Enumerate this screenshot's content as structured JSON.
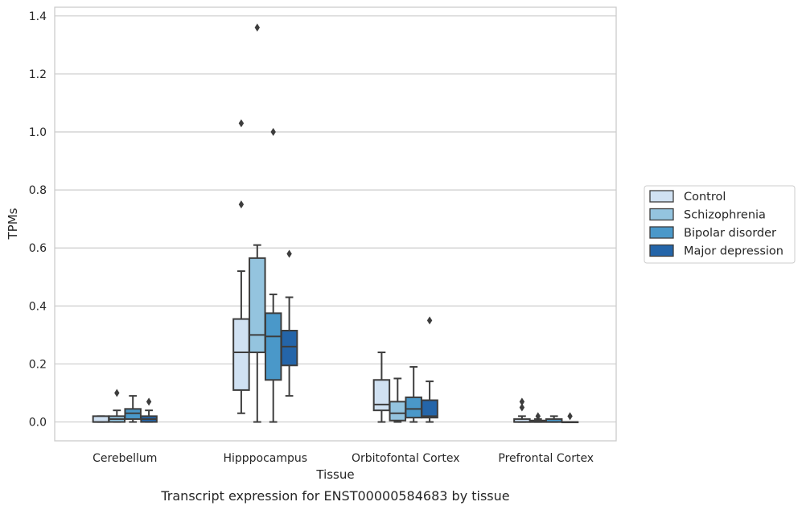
{
  "chart_data": {
    "type": "box",
    "caption": "Transcript expression for ENST00000584683 by tissue",
    "xlabel": "Tissue",
    "ylabel": "TPMs",
    "ylim": [
      -0.065,
      1.43
    ],
    "yticks": [
      0.0,
      0.2,
      0.4,
      0.6,
      0.8,
      1.0,
      1.2,
      1.4
    ],
    "ytick_labels": [
      "0.0",
      "0.2",
      "0.4",
      "0.6",
      "0.8",
      "1.0",
      "1.2",
      "1.4"
    ],
    "grid": "horizontal",
    "legend_position": "right",
    "categories": [
      "Cerebellum",
      "Hipppocampus",
      "Orbitofontal Cortex",
      "Prefrontal Cortex"
    ],
    "series": [
      {
        "name": "Control",
        "color": "#d0e1f2",
        "boxes": [
          {
            "whislo": 0.0,
            "q1": 0.0,
            "med": 0.0,
            "q3": 0.02,
            "whishi": 0.02,
            "fliers": []
          },
          {
            "whislo": 0.03,
            "q1": 0.11,
            "med": 0.24,
            "q3": 0.355,
            "whishi": 0.52,
            "fliers": [
              0.75,
              1.03
            ]
          },
          {
            "whislo": 0.0,
            "q1": 0.04,
            "med": 0.06,
            "q3": 0.145,
            "whishi": 0.24,
            "fliers": []
          },
          {
            "whislo": 0.0,
            "q1": 0.0,
            "med": 0.0,
            "q3": 0.01,
            "whishi": 0.02,
            "fliers": [
              0.05,
              0.07
            ]
          }
        ]
      },
      {
        "name": "Schizophrenia",
        "color": "#94c4df",
        "boxes": [
          {
            "whislo": 0.0,
            "q1": 0.0,
            "med": 0.01,
            "q3": 0.02,
            "whishi": 0.04,
            "fliers": [
              0.1
            ]
          },
          {
            "whislo": 0.0,
            "q1": 0.24,
            "med": 0.3,
            "q3": 0.565,
            "whishi": 0.61,
            "fliers": [
              1.36
            ]
          },
          {
            "whislo": 0.0,
            "q1": 0.005,
            "med": 0.03,
            "q3": 0.07,
            "whishi": 0.15,
            "fliers": []
          },
          {
            "whislo": 0.0,
            "q1": 0.0,
            "med": 0.0,
            "q3": 0.005,
            "whishi": 0.01,
            "fliers": [
              0.02
            ]
          }
        ]
      },
      {
        "name": "Bipolar disorder",
        "color": "#4a98c9",
        "boxes": [
          {
            "whislo": 0.0,
            "q1": 0.01,
            "med": 0.03,
            "q3": 0.045,
            "whishi": 0.09,
            "fliers": []
          },
          {
            "whislo": 0.0,
            "q1": 0.145,
            "med": 0.295,
            "q3": 0.375,
            "whishi": 0.44,
            "fliers": [
              1.0
            ]
          },
          {
            "whislo": 0.0,
            "q1": 0.015,
            "med": 0.045,
            "q3": 0.085,
            "whishi": 0.19,
            "fliers": []
          },
          {
            "whislo": 0.0,
            "q1": 0.0,
            "med": 0.0,
            "q3": 0.01,
            "whishi": 0.02,
            "fliers": []
          }
        ]
      },
      {
        "name": "Major depression",
        "color": "#2465a9",
        "boxes": [
          {
            "whislo": 0.0,
            "q1": 0.0,
            "med": 0.01,
            "q3": 0.02,
            "whishi": 0.04,
            "fliers": [
              0.07
            ]
          },
          {
            "whislo": 0.09,
            "q1": 0.195,
            "med": 0.26,
            "q3": 0.315,
            "whishi": 0.43,
            "fliers": [
              0.58
            ]
          },
          {
            "whislo": 0.0,
            "q1": 0.015,
            "med": 0.02,
            "q3": 0.075,
            "whishi": 0.14,
            "fliers": [
              0.35
            ]
          },
          {
            "whislo": 0.0,
            "q1": 0.0,
            "med": 0.0,
            "q3": 0.0,
            "whishi": 0.0,
            "fliers": [
              0.02
            ]
          }
        ]
      }
    ]
  }
}
